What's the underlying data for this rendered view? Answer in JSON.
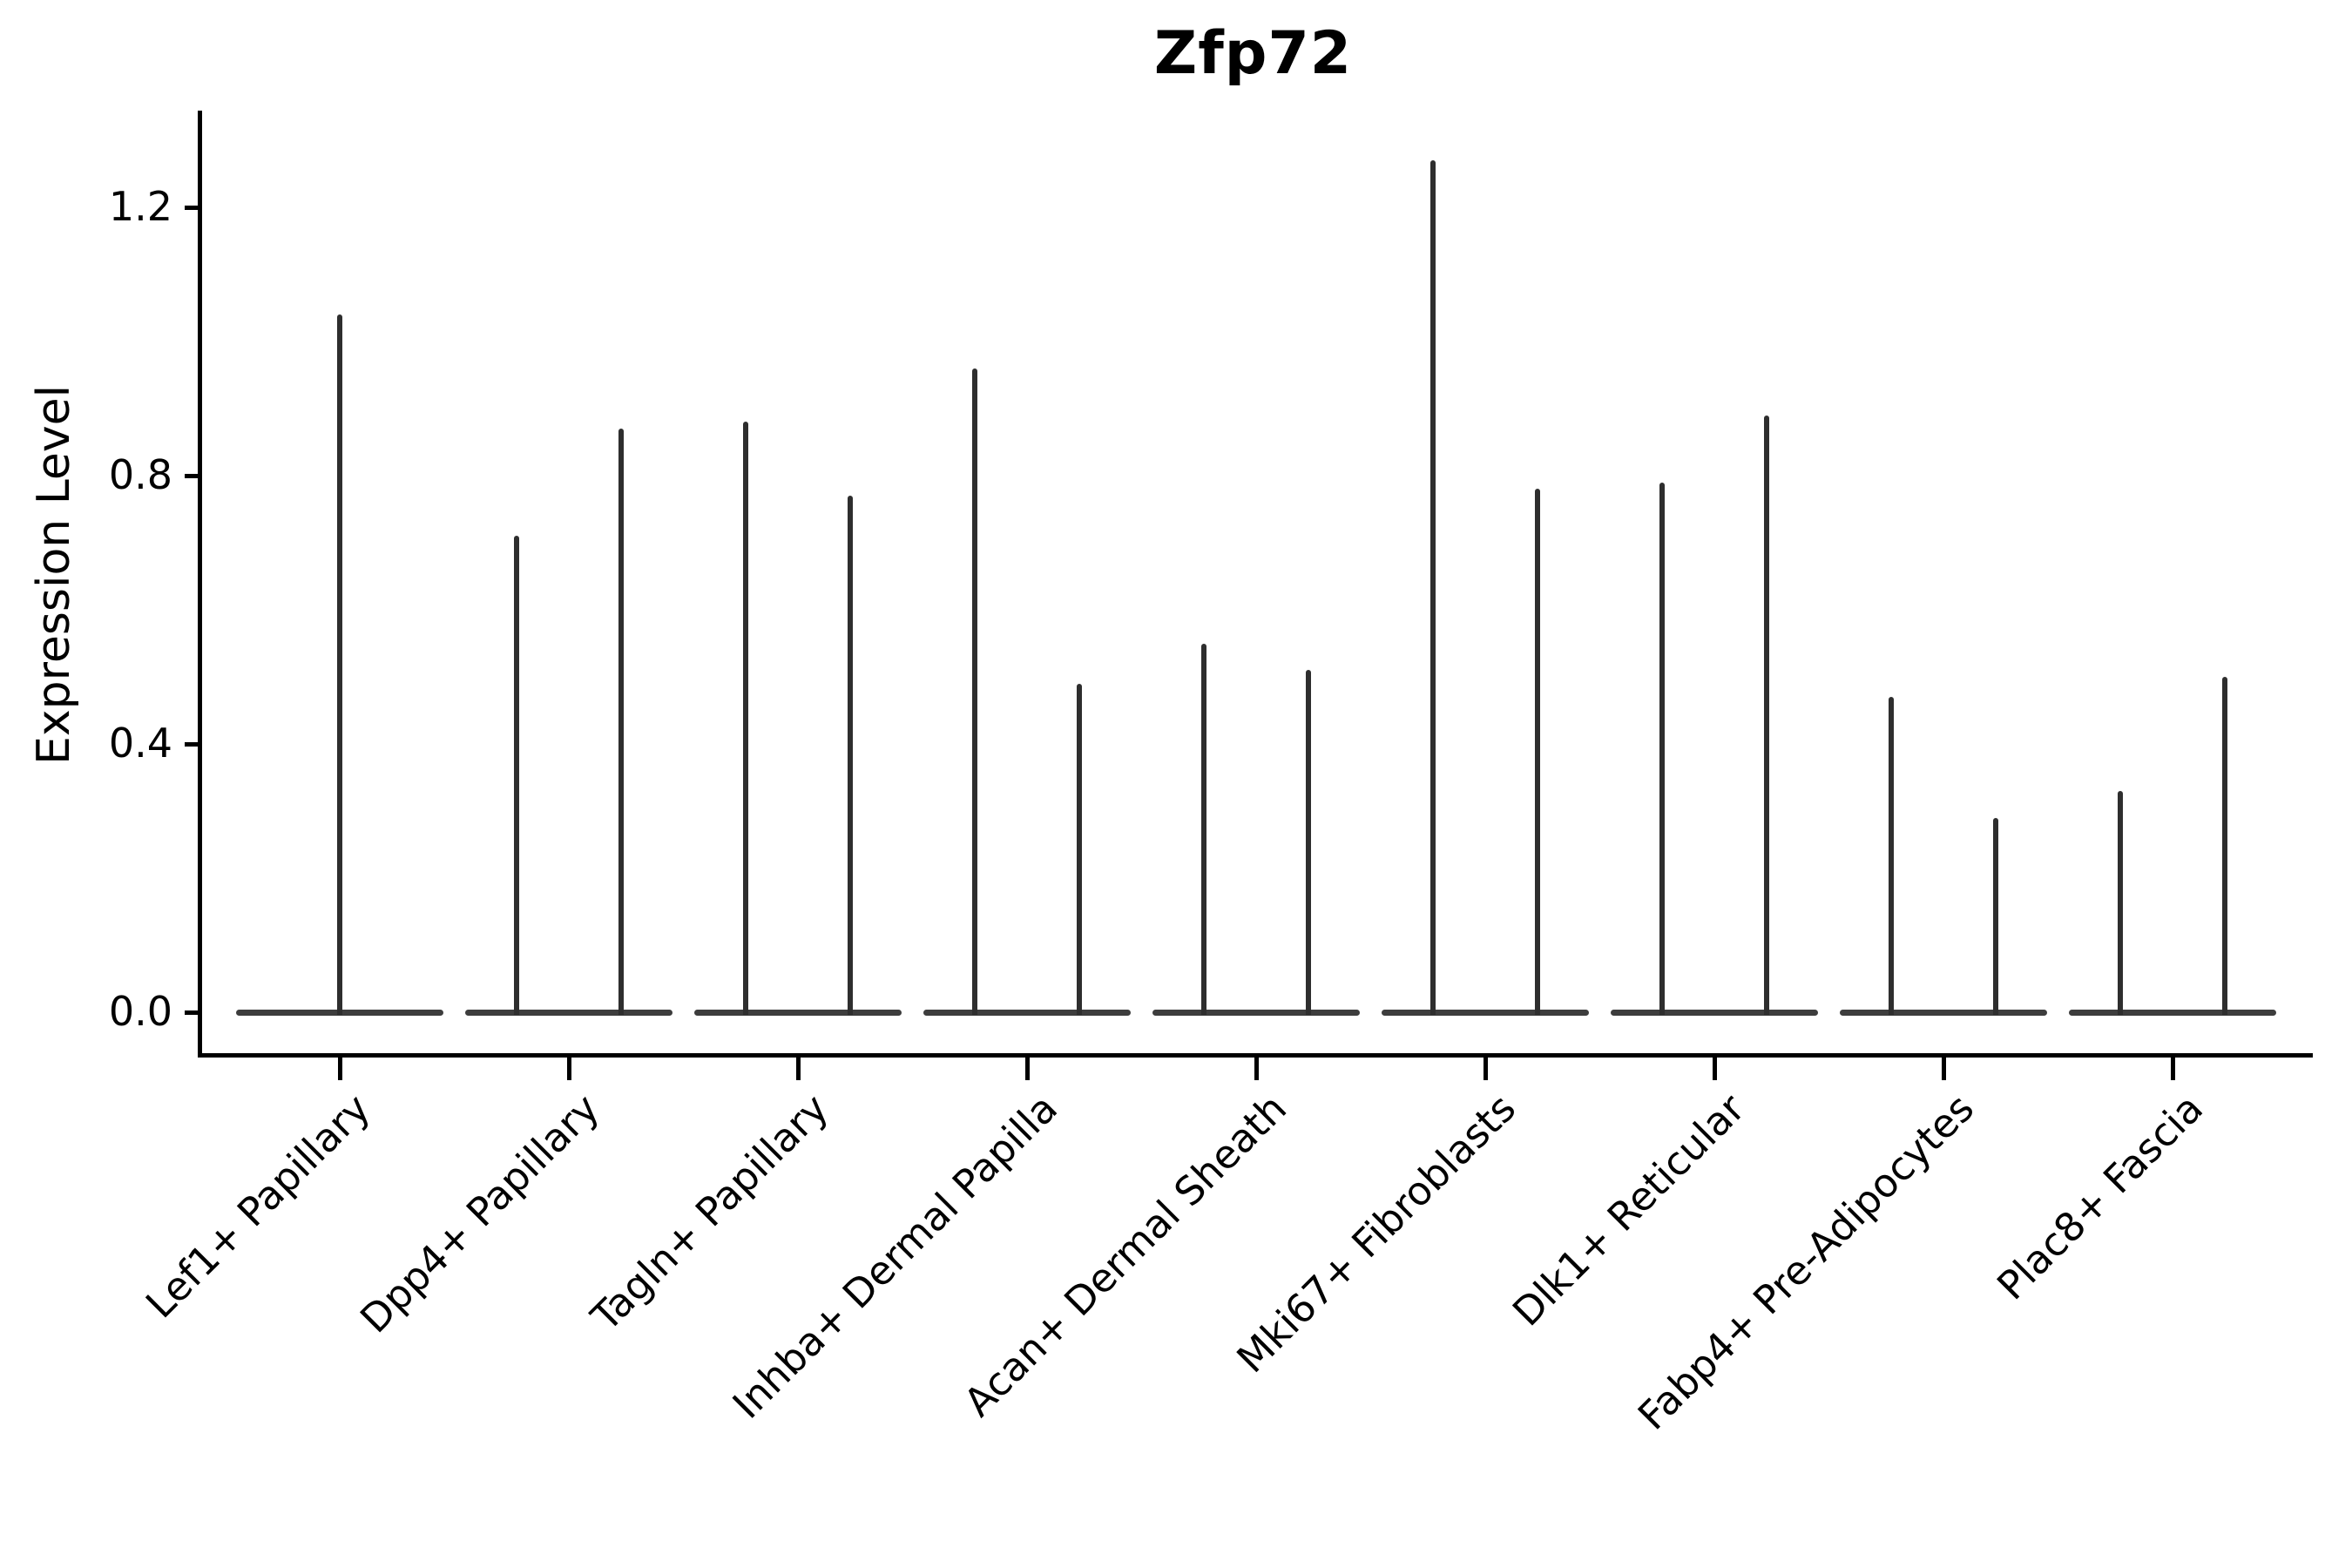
{
  "figure": {
    "background_color": "#ffffff",
    "axis_color": "#000000",
    "violin_color": "#2e2e2e",
    "base_color": "#3d3d3d"
  },
  "chart_data": {
    "type": "violin",
    "title": "Zfp72",
    "xlabel": "",
    "ylabel": "Expression Level",
    "yticks": [
      "0.0",
      "0.4",
      "0.8",
      "1.2"
    ],
    "ytick_values": [
      0.0,
      0.4,
      0.8,
      1.2
    ],
    "ylim": [
      -0.06,
      1.34
    ],
    "grid": false,
    "legend": false,
    "description": "Violin plot of Zfp72 expression per fibroblast cluster; each violin collapses to a flat bar at 0 with thin density spikes reaching the listed maximum expression values. Most categories show two adjacent violins.",
    "categories": [
      "Lef1+ Papillary",
      "Dpp4+ Papillary",
      "Tagln+ Papillary",
      "Inhba+ Dermal Papilla",
      "Acan+ Dermal Sheath",
      "Mki67+ Fibroblasts",
      "Dlk1+ Reticular",
      "Fabp4+ Pre-Adipocytes",
      "Plac8+ Fascia"
    ],
    "series": [
      {
        "category": "Lef1+ Papillary",
        "violins": [
          {
            "position": "center",
            "peak": 1.04
          }
        ]
      },
      {
        "category": "Dpp4+ Papillary",
        "violins": [
          {
            "position": "left",
            "peak": 0.71
          },
          {
            "position": "right",
            "peak": 0.87
          }
        ]
      },
      {
        "category": "Tagln+ Papillary",
        "violins": [
          {
            "position": "left",
            "peak": 0.88
          },
          {
            "position": "right",
            "peak": 0.77
          }
        ]
      },
      {
        "category": "Inhba+ Dermal Papilla",
        "violins": [
          {
            "position": "left",
            "peak": 0.96
          },
          {
            "position": "right",
            "peak": 0.49
          }
        ]
      },
      {
        "category": "Acan+ Dermal Sheath",
        "violins": [
          {
            "position": "left",
            "peak": 0.55
          },
          {
            "position": "right",
            "peak": 0.51
          }
        ]
      },
      {
        "category": "Mki67+ Fibroblasts",
        "violins": [
          {
            "position": "left",
            "peak": 1.27
          },
          {
            "position": "right",
            "peak": 0.78
          }
        ]
      },
      {
        "category": "Dlk1+ Reticular",
        "violins": [
          {
            "position": "left",
            "peak": 0.79
          },
          {
            "position": "right",
            "peak": 0.89
          }
        ]
      },
      {
        "category": "Fabp4+ Pre-Adipocytes",
        "violins": [
          {
            "position": "left",
            "peak": 0.47
          },
          {
            "position": "right",
            "peak": 0.29
          }
        ]
      },
      {
        "category": "Plac8+ Fascia",
        "violins": [
          {
            "position": "left",
            "peak": 0.33
          },
          {
            "position": "right",
            "peak": 0.5
          }
        ]
      }
    ]
  }
}
